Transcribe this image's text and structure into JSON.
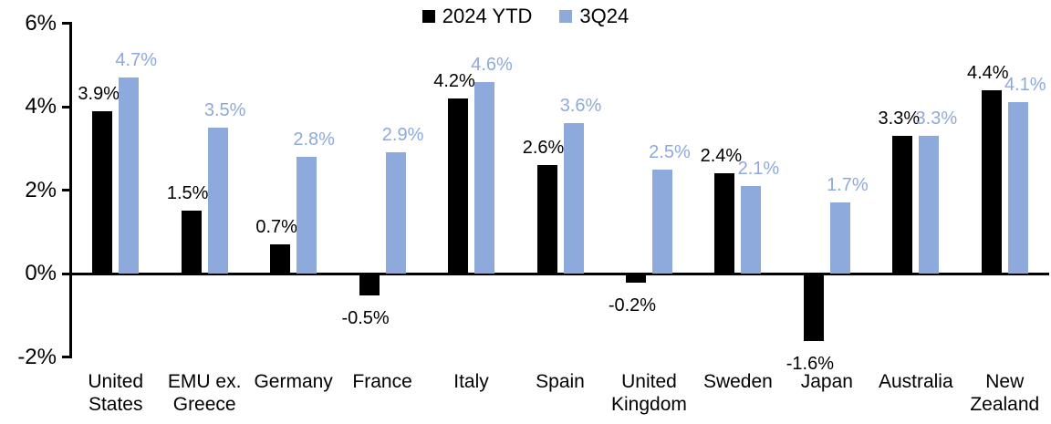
{
  "chart_data": {
    "type": "bar",
    "title": "",
    "grid": false,
    "legend": {
      "position": "top-center",
      "entries": [
        "2024 YTD",
        "3Q24"
      ]
    },
    "categories": [
      "United\nStates",
      "EMU ex.\nGreece",
      "Germany",
      "France",
      "Italy",
      "Spain",
      "United\nKingdom",
      "Sweden",
      "Japan",
      "Australia",
      "New\nZealand"
    ],
    "series": [
      {
        "name": "2024 YTD",
        "color": "#000000",
        "values": [
          3.9,
          1.5,
          0.7,
          -0.5,
          4.2,
          2.6,
          -0.2,
          2.4,
          -1.6,
          3.3,
          4.4
        ],
        "labels": [
          "3.9%",
          "1.5%",
          "0.7%",
          "-0.5%",
          "4.2%",
          "2.6%",
          "-0.2%",
          "2.4%",
          "-1.6%",
          "3.3%",
          "4.4%"
        ]
      },
      {
        "name": "3Q24",
        "color": "#8EA9DB",
        "values": [
          4.7,
          3.5,
          2.8,
          2.9,
          4.6,
          3.6,
          2.5,
          2.1,
          1.7,
          3.3,
          4.1
        ],
        "labels": [
          "4.7%",
          "3.5%",
          "2.8%",
          "2.9%",
          "4.6%",
          "3.6%",
          "2.5%",
          "2.1%",
          "1.7%",
          "3.3%",
          "4.1%"
        ]
      }
    ],
    "ylim": [
      -2,
      6
    ],
    "yticks": [
      {
        "label": "6%",
        "value": 6
      },
      {
        "label": "4%",
        "value": 4
      },
      {
        "label": "2%",
        "value": 2
      },
      {
        "label": "0%",
        "value": 0
      },
      {
        "label": "-2%",
        "value": -2
      }
    ]
  }
}
